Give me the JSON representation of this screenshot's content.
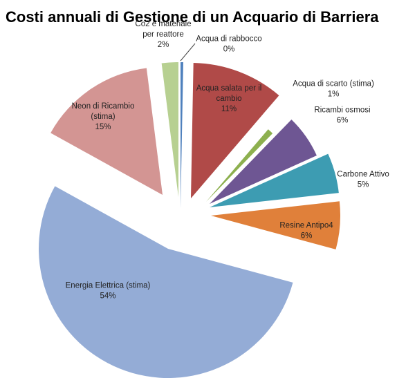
{
  "chart_data": {
    "type": "pie",
    "title": "Costi annuali di Gestione di un Acquario di Barriera",
    "slices": [
      {
        "lines": [
          "Acqua di rabbocco",
          "0%"
        ],
        "value": 0.3,
        "color": "#4f81bd"
      },
      {
        "lines": [
          "Acqua salata  per il",
          "cambio",
          "11%"
        ],
        "value": 11,
        "color": "#b04a48"
      },
      {
        "lines": [
          "Acqua di scarto (stima)",
          "1%"
        ],
        "value": 1,
        "color": "#8db04f"
      },
      {
        "lines": [
          "Ricambi osmosi",
          "6%"
        ],
        "value": 6,
        "color": "#6e5693"
      },
      {
        "lines": [
          "Carbone Attivo",
          "5%"
        ],
        "value": 5,
        "color": "#3d9cb2"
      },
      {
        "lines": [
          "Resine Antipo4",
          "6%"
        ],
        "value": 6,
        "color": "#e0803a"
      },
      {
        "lines": [
          "Energia Elettrica (stima)",
          "54%"
        ],
        "value": 54,
        "color": "#94acd6"
      },
      {
        "lines": [
          "Neon di Ricambio",
          "(stima)",
          "15%"
        ],
        "value": 15,
        "color": "#d39593"
      },
      {
        "lines": [
          "Co2 e materiale",
          "per reattore",
          "2%"
        ],
        "value": 2,
        "color": "#b7d091"
      }
    ]
  }
}
